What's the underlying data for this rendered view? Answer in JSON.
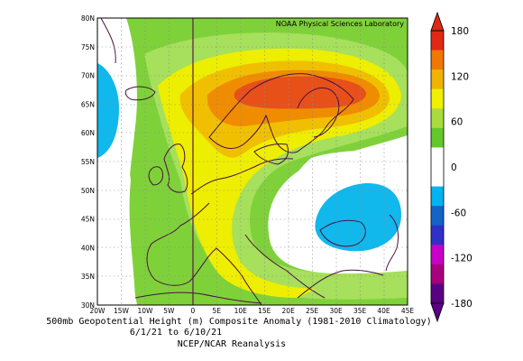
{
  "credit": "NOAA Physical Sciences Laboratory",
  "caption": {
    "line1": "500mb Geopotential Height (m) Composite Anomaly (1981-2010 Climatology)",
    "line2": "6/1/21 to 6/10/21",
    "line3": "NCEP/NCAR Reanalysis"
  },
  "lat_labels": [
    "80N",
    "75N",
    "70N",
    "65N",
    "60N",
    "55N",
    "50N",
    "45N",
    "40N",
    "35N",
    "30N"
  ],
  "lon_labels": [
    "20W",
    "15W",
    "10W",
    "5W",
    "0",
    "5E",
    "10E",
    "15E",
    "20E",
    "25E",
    "30E",
    "35E",
    "40E",
    "45E"
  ],
  "colorbar": {
    "labels": [
      "180",
      "120",
      "60",
      "0",
      "-60",
      "-120",
      "-180"
    ],
    "colors": [
      "#5a0082",
      "#a8007e",
      "#c800c8",
      "#3030c8",
      "#1464c8",
      "#00b4f0",
      "#ffffff",
      "#ffffff",
      "#64c82a",
      "#a8dc3c",
      "#f0f000",
      "#f0b400",
      "#f07800",
      "#e12814"
    ]
  },
  "colors": {
    "green": "#7fd13a",
    "light_green": "#a6e05c",
    "yellow": "#eeee00",
    "gold": "#f0c000",
    "orange": "#f08c00",
    "red_orange": "#e8501a",
    "cyan": "#10b8ec",
    "coast": "#4a1040"
  }
}
